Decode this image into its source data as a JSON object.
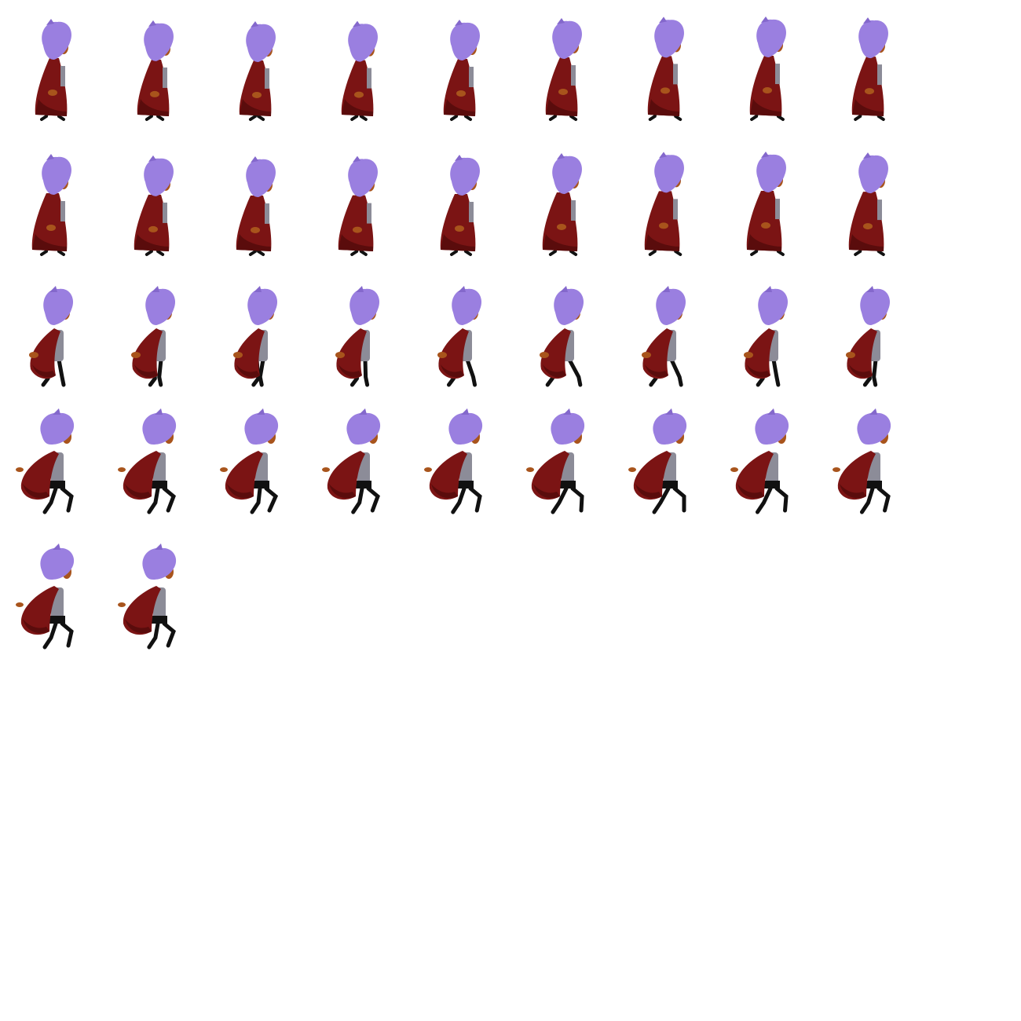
{
  "sprite_sheet": {
    "background": "#ffffff",
    "frame_count": 38,
    "columns": 9,
    "frames_per_row": [
      9,
      9,
      9,
      9,
      2
    ],
    "character": {
      "hair_color": "#9a7fe0",
      "hair_shade": "#8468cc",
      "skin_color": "#a8541c",
      "cloak_color": "#7b1414",
      "cloak_shade": "#5a0c0c",
      "shirt_color": "#8c8c98",
      "leg_color": "#111111"
    },
    "phases": [
      {
        "name": "walk-cloaked",
        "frames": [
          0,
          17
        ]
      },
      {
        "name": "run-cloak-open",
        "frames": [
          18,
          26
        ]
      },
      {
        "name": "crouch-jump",
        "frames": [
          27,
          37
        ]
      }
    ]
  }
}
